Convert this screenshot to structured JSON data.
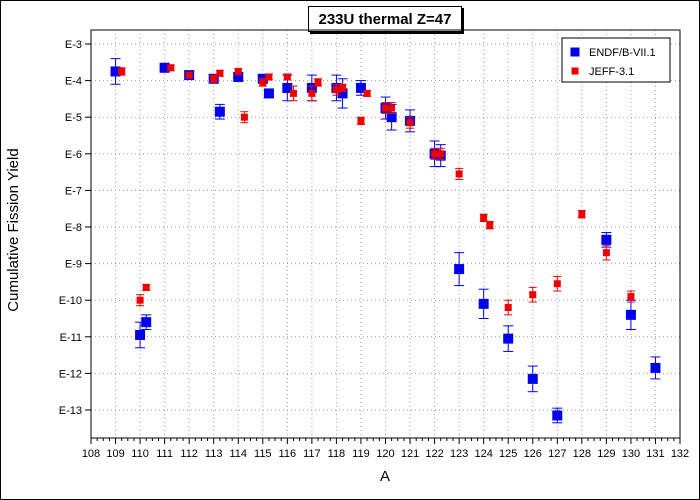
{
  "chart_data": {
    "type": "scatter",
    "title": "233U thermal Z=47",
    "xlabel": "A",
    "ylabel": "Cumulative Fission Yield",
    "y_scale": "log",
    "xlim": [
      108,
      132
    ],
    "ylim_exponent": [
      -13.9,
      -2.9
    ],
    "x_ticks": [
      108,
      109,
      110,
      111,
      112,
      113,
      114,
      115,
      116,
      117,
      118,
      119,
      120,
      121,
      122,
      123,
      124,
      125,
      126,
      127,
      128,
      129,
      130,
      131,
      132
    ],
    "y_ticks": [
      {
        "exp": -3,
        "label": "E-3"
      },
      {
        "exp": -4,
        "label": "E-4"
      },
      {
        "exp": -5,
        "label": "E-5"
      },
      {
        "exp": -6,
        "label": "E-6"
      },
      {
        "exp": -7,
        "label": "E-7"
      },
      {
        "exp": -8,
        "label": "E-8"
      },
      {
        "exp": -9,
        "label": "E-9"
      },
      {
        "exp": -10,
        "label": "E-10"
      },
      {
        "exp": -11,
        "label": "E-11"
      },
      {
        "exp": -12,
        "label": "E-12"
      },
      {
        "exp": -13,
        "label": "E-13"
      }
    ],
    "grid": true,
    "legend_position": "top-right",
    "series": [
      {
        "name": "ENDF/B-VII.1",
        "color": "#0000ee",
        "marker": "square-large",
        "points": [
          {
            "x": 109,
            "y_exp": -3.75,
            "err": 0.35
          },
          {
            "x": 110,
            "y_exp": -10.95,
            "err": 0.35
          },
          {
            "x": 110.25,
            "y_exp": -10.6,
            "err": 0.2
          },
          {
            "x": 111,
            "y_exp": -3.65,
            "err": 0.1
          },
          {
            "x": 112,
            "y_exp": -3.85,
            "err": 0.1
          },
          {
            "x": 113,
            "y_exp": -3.95,
            "err": 0.1
          },
          {
            "x": 113.25,
            "y_exp": -4.85,
            "err": 0.2
          },
          {
            "x": 114,
            "y_exp": -3.9,
            "err": 0.1
          },
          {
            "x": 115,
            "y_exp": -3.95,
            "err": 0.1
          },
          {
            "x": 115.25,
            "y_exp": -4.35,
            "err": 0.1
          },
          {
            "x": 116,
            "y_exp": -4.2,
            "err": 0.35
          },
          {
            "x": 117,
            "y_exp": -4.2,
            "err": 0.35
          },
          {
            "x": 118,
            "y_exp": -4.2,
            "err": 0.35
          },
          {
            "x": 118.25,
            "y_exp": -4.35,
            "err": 0.4
          },
          {
            "x": 119,
            "y_exp": -4.2,
            "err": 0.2
          },
          {
            "x": 120,
            "y_exp": -4.75,
            "err": 0.3
          },
          {
            "x": 120.25,
            "y_exp": -5.0,
            "err": 0.35
          },
          {
            "x": 121,
            "y_exp": -5.1,
            "err": 0.3
          },
          {
            "x": 122,
            "y_exp": -6.0,
            "err": 0.35
          },
          {
            "x": 122.25,
            "y_exp": -6.05,
            "err": 0.3
          },
          {
            "x": 123,
            "y_exp": -9.15,
            "err": 0.45
          },
          {
            "x": 124,
            "y_exp": -10.1,
            "err": 0.4
          },
          {
            "x": 125,
            "y_exp": -11.05,
            "err": 0.35
          },
          {
            "x": 126,
            "y_exp": -12.15,
            "err": 0.35
          },
          {
            "x": 127,
            "y_exp": -13.15,
            "err": 0.2
          },
          {
            "x": 129,
            "y_exp": -8.35,
            "err": 0.2
          },
          {
            "x": 130,
            "y_exp": -10.4,
            "err": 0.4
          },
          {
            "x": 131,
            "y_exp": -11.85,
            "err": 0.3
          }
        ]
      },
      {
        "name": "JEFF-3.1",
        "color": "#ee0000",
        "marker": "square-small",
        "points": [
          {
            "x": 109.25,
            "y_exp": -3.75,
            "err": 0.1
          },
          {
            "x": 110,
            "y_exp": -10.0,
            "err": 0.15
          },
          {
            "x": 110.25,
            "y_exp": -9.65,
            "err": 0.08
          },
          {
            "x": 111.25,
            "y_exp": -3.65,
            "err": 0.08
          },
          {
            "x": 112,
            "y_exp": -3.85,
            "err": 0.08
          },
          {
            "x": 113,
            "y_exp": -3.95,
            "err": 0.1
          },
          {
            "x": 113.25,
            "y_exp": -3.8,
            "err": 0.08
          },
          {
            "x": 114,
            "y_exp": -3.75,
            "err": 0.08
          },
          {
            "x": 114.25,
            "y_exp": -5.0,
            "err": 0.15
          },
          {
            "x": 115,
            "y_exp": -4.05,
            "err": 0.1
          },
          {
            "x": 115.25,
            "y_exp": -3.9,
            "err": 0.08
          },
          {
            "x": 116,
            "y_exp": -3.9,
            "err": 0.08
          },
          {
            "x": 116.25,
            "y_exp": -4.35,
            "err": 0.2
          },
          {
            "x": 117,
            "y_exp": -4.35,
            "err": 0.2
          },
          {
            "x": 117.25,
            "y_exp": -4.05,
            "err": 0.1
          },
          {
            "x": 118,
            "y_exp": -4.25,
            "err": 0.15
          },
          {
            "x": 118.25,
            "y_exp": -4.2,
            "err": 0.1
          },
          {
            "x": 119,
            "y_exp": -5.1,
            "err": 0.1
          },
          {
            "x": 119.25,
            "y_exp": -4.35,
            "err": 0.08
          },
          {
            "x": 120,
            "y_exp": -4.75,
            "err": 0.15
          },
          {
            "x": 120.25,
            "y_exp": -4.75,
            "err": 0.15
          },
          {
            "x": 121,
            "y_exp": -5.15,
            "err": 0.15
          },
          {
            "x": 122,
            "y_exp": -6.0,
            "err": 0.15
          },
          {
            "x": 122.25,
            "y_exp": -6.0,
            "err": 0.15
          },
          {
            "x": 123,
            "y_exp": -6.55,
            "err": 0.15
          },
          {
            "x": 124,
            "y_exp": -7.75,
            "err": 0.1
          },
          {
            "x": 124.25,
            "y_exp": -7.95,
            "err": 0.1
          },
          {
            "x": 125,
            "y_exp": -10.2,
            "err": 0.2
          },
          {
            "x": 126,
            "y_exp": -9.85,
            "err": 0.2
          },
          {
            "x": 127,
            "y_exp": -9.55,
            "err": 0.2
          },
          {
            "x": 128,
            "y_exp": -7.65,
            "err": 0.1
          },
          {
            "x": 129,
            "y_exp": -8.7,
            "err": 0.2
          },
          {
            "x": 130,
            "y_exp": -9.9,
            "err": 0.15
          }
        ]
      }
    ]
  }
}
